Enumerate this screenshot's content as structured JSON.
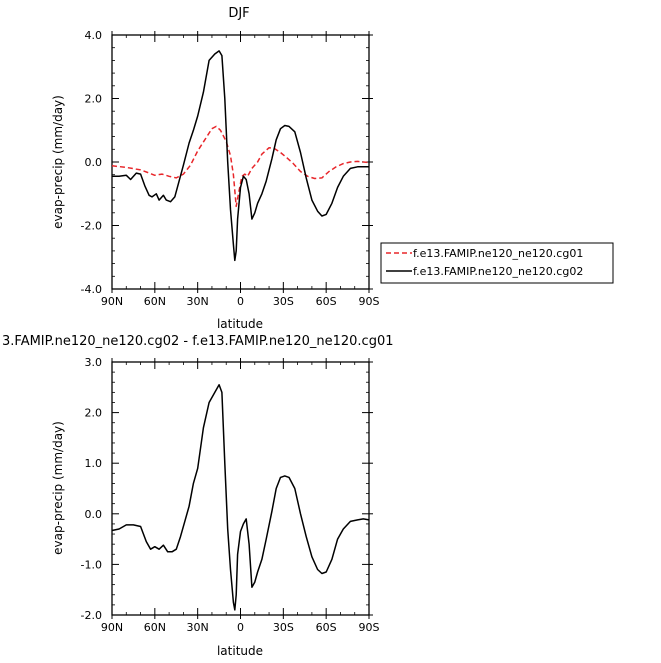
{
  "chart_data": [
    {
      "type": "line",
      "title": "DJF",
      "xlabel": "latitude",
      "ylabel": "evap-precip (mm/day)",
      "xlim": [
        90,
        -90
      ],
      "ylim": [
        -4,
        4
      ],
      "x_ticks": [
        90,
        60,
        30,
        0,
        -30,
        -60,
        -90
      ],
      "x_tick_labels": [
        "90N",
        "60N",
        "30N",
        "0",
        "30S",
        "60S",
        "90S"
      ],
      "y_ticks": [
        -4,
        -2,
        0,
        2,
        4
      ],
      "y_tick_labels": [
        "-4.0",
        "-2.0",
        "0.0",
        "2.0",
        "4.0"
      ],
      "grid": false,
      "legend_position": "right",
      "series": [
        {
          "name": "f.e13.FAMIP.ne120_ne120.cg01",
          "color": "#e8262a",
          "dash": "dashed",
          "x": [
            90,
            80,
            70,
            65,
            60,
            55,
            50,
            45,
            40,
            35,
            30,
            25,
            20,
            17,
            14,
            10,
            7,
            5,
            3,
            1,
            -1,
            -3,
            -5,
            -8,
            -12,
            -15,
            -20,
            -24,
            -28,
            -32,
            -37,
            -42,
            -47,
            -52,
            -57,
            -62,
            -67,
            -72,
            -77,
            -82,
            -86,
            -90
          ],
          "values": [
            -0.12,
            -0.17,
            -0.25,
            -0.33,
            -0.42,
            -0.38,
            -0.45,
            -0.5,
            -0.38,
            -0.1,
            0.35,
            0.7,
            1.05,
            1.12,
            1.0,
            0.65,
            0.2,
            -0.4,
            -1.4,
            -0.9,
            -0.45,
            -0.38,
            -0.45,
            -0.2,
            0.0,
            0.25,
            0.45,
            0.42,
            0.3,
            0.15,
            -0.05,
            -0.3,
            -0.45,
            -0.52,
            -0.5,
            -0.3,
            -0.15,
            -0.05,
            0.0,
            0.02,
            0.0,
            -0.02
          ]
        },
        {
          "name": "f.e13.FAMIP.ne120_ne120.cg02",
          "color": "#000000",
          "dash": "solid",
          "x": [
            90,
            85,
            80,
            77,
            73,
            70,
            67,
            64,
            62,
            59,
            57,
            54,
            52,
            49,
            46,
            43,
            40,
            36,
            33,
            30,
            26,
            22,
            18,
            15,
            13,
            11,
            9,
            7,
            5,
            4,
            3,
            2,
            0,
            -2,
            -4,
            -6,
            -8,
            -10,
            -12,
            -15,
            -18,
            -22,
            -25,
            -28,
            -31,
            -34,
            -38,
            -42,
            -46,
            -50,
            -54,
            -57,
            -60,
            -64,
            -68,
            -72,
            -77,
            -82,
            -86,
            -90
          ],
          "values": [
            -0.45,
            -0.45,
            -0.42,
            -0.55,
            -0.35,
            -0.38,
            -0.75,
            -1.05,
            -1.1,
            -1.0,
            -1.2,
            -1.05,
            -1.2,
            -1.25,
            -1.1,
            -0.6,
            -0.1,
            0.6,
            1.0,
            1.45,
            2.2,
            3.2,
            3.4,
            3.5,
            3.35,
            2.0,
            0.0,
            -1.5,
            -2.6,
            -3.1,
            -2.8,
            -1.8,
            -0.8,
            -0.45,
            -0.55,
            -1.0,
            -1.8,
            -1.6,
            -1.3,
            -1.0,
            -0.6,
            0.1,
            0.7,
            1.05,
            1.15,
            1.12,
            0.95,
            0.3,
            -0.5,
            -1.2,
            -1.55,
            -1.7,
            -1.65,
            -1.3,
            -0.8,
            -0.45,
            -0.2,
            -0.15,
            -0.15,
            -0.15
          ]
        }
      ]
    },
    {
      "type": "line",
      "title": "3.FAMIP.ne120_ne120.cg02 - f.e13.FAMIP.ne120_ne120.cg01",
      "xlabel": "latitude",
      "ylabel": "evap-precip (mm/day)",
      "xlim": [
        90,
        -90
      ],
      "ylim": [
        -2,
        3
      ],
      "x_ticks": [
        90,
        60,
        30,
        0,
        -30,
        -60,
        -90
      ],
      "x_tick_labels": [
        "90N",
        "60N",
        "30N",
        "0",
        "30S",
        "60S",
        "90S"
      ],
      "y_ticks": [
        -2,
        -1,
        0,
        1,
        2,
        3
      ],
      "y_tick_labels": [
        "-2.0",
        "-1.0",
        "0.0",
        "1.0",
        "2.0",
        "3.0"
      ],
      "grid": false,
      "series": [
        {
          "color": "#000000",
          "dash": "solid",
          "x": [
            90,
            85,
            80,
            75,
            70,
            66,
            63,
            60,
            57,
            54,
            51,
            48,
            45,
            42,
            39,
            36,
            33,
            30,
            26,
            22,
            18,
            15,
            13,
            11,
            9,
            7,
            5,
            4,
            3,
            2,
            0,
            -2,
            -4,
            -6,
            -8,
            -10,
            -12,
            -15,
            -18,
            -22,
            -25,
            -28,
            -31,
            -34,
            -38,
            -42,
            -46,
            -50,
            -54,
            -57,
            -60,
            -64,
            -68,
            -72,
            -77,
            -82,
            -86,
            -90
          ],
          "values": [
            -0.33,
            -0.3,
            -0.22,
            -0.22,
            -0.25,
            -0.55,
            -0.7,
            -0.65,
            -0.7,
            -0.62,
            -0.75,
            -0.75,
            -0.7,
            -0.45,
            -0.15,
            0.15,
            0.6,
            0.9,
            1.7,
            2.2,
            2.4,
            2.55,
            2.4,
            1.0,
            -0.3,
            -1.1,
            -1.75,
            -1.9,
            -1.6,
            -0.8,
            -0.35,
            -0.2,
            -0.1,
            -0.6,
            -1.45,
            -1.35,
            -1.15,
            -0.9,
            -0.5,
            0.05,
            0.5,
            0.72,
            0.75,
            0.72,
            0.5,
            0.0,
            -0.45,
            -0.85,
            -1.1,
            -1.18,
            -1.15,
            -0.9,
            -0.5,
            -0.3,
            -0.15,
            -0.12,
            -0.1,
            -0.12
          ]
        }
      ]
    }
  ]
}
